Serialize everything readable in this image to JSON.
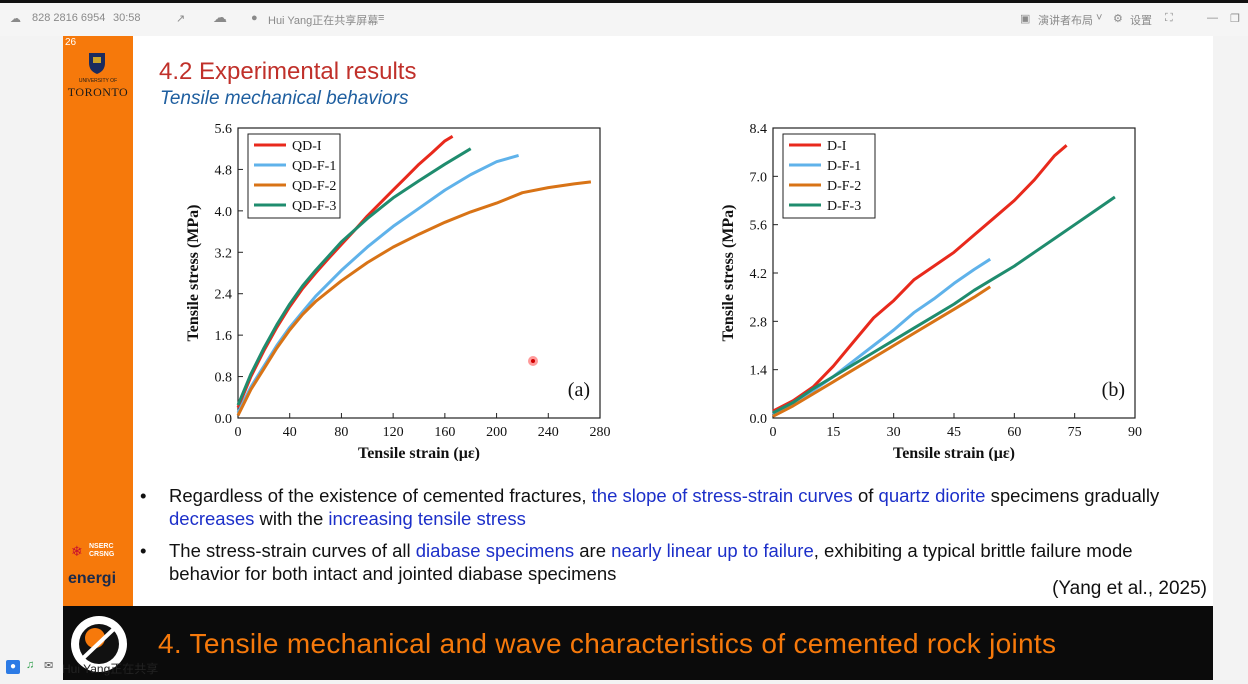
{
  "topbar": {
    "meeting_id": "828 2816 6954",
    "timer": "30:58",
    "sharing": "Hui Yang正在共享屏幕",
    "layout": "演讲者布局",
    "settings": "设置"
  },
  "slide": {
    "page_number": "26",
    "logo_university": "UNIVERSITY OF",
    "logo_toronto": "TORONTO",
    "nserc": "NSERC CRSNG",
    "energi": "energi",
    "title": "4.2 Experimental results",
    "subtitle": "Tensile mechanical behaviors",
    "bullet1": {
      "t1": "Regardless of the existence of cemented fractures, ",
      "h1": "the slope of stress-strain curves",
      "t2": " of ",
      "h2": "quartz diorite",
      "t3": " specimens gradually ",
      "h3": "decreases",
      "t4": " with the ",
      "h4": "increasing tensile stress"
    },
    "bullet2": {
      "t1": "The stress-strain curves of all ",
      "h1": "diabase specimens",
      "t2": " are ",
      "h2": "nearly linear up to failure",
      "t3": ", exhibiting a typical brittle failure mode behavior for both intact and jointed diabase specimens"
    },
    "reference": "(Yang et al., 2025)",
    "footer_title": "4. Tensile mechanical and wave characteristics of cemented rock joints"
  },
  "bottombar": {
    "sharing": "Hui Yang正在共享"
  },
  "chart_data": [
    {
      "type": "line",
      "panel_label": "(a)",
      "xlabel": "Tensile strain (με)",
      "ylabel": "Tensile stress (MPa)",
      "xlim": [
        0,
        280
      ],
      "ylim": [
        0,
        5.6
      ],
      "xticks": [
        "0",
        "40",
        "80",
        "120",
        "160",
        "200",
        "240",
        "280"
      ],
      "yticks": [
        "0.0",
        "0.8",
        "1.6",
        "2.4",
        "3.2",
        "4.0",
        "4.8",
        "5.6"
      ],
      "legend_position": "top-left",
      "series": [
        {
          "name": "QD-I",
          "color": "#e8291c",
          "points": [
            [
              0,
              0.2
            ],
            [
              10,
              0.8
            ],
            [
              20,
              1.3
            ],
            [
              30,
              1.75
            ],
            [
              40,
              2.15
            ],
            [
              50,
              2.5
            ],
            [
              60,
              2.8
            ],
            [
              70,
              3.08
            ],
            [
              80,
              3.35
            ],
            [
              90,
              3.62
            ],
            [
              100,
              3.9
            ],
            [
              110,
              4.15
            ],
            [
              120,
              4.4
            ],
            [
              130,
              4.65
            ],
            [
              140,
              4.9
            ],
            [
              150,
              5.12
            ],
            [
              160,
              5.35
            ],
            [
              166,
              5.44
            ]
          ]
        },
        {
          "name": "QD-F-1",
          "color": "#5fb2ea",
          "points": [
            [
              0,
              0.1
            ],
            [
              10,
              0.6
            ],
            [
              20,
              1.0
            ],
            [
              30,
              1.4
            ],
            [
              40,
              1.75
            ],
            [
              50,
              2.05
            ],
            [
              60,
              2.35
            ],
            [
              80,
              2.85
            ],
            [
              100,
              3.3
            ],
            [
              120,
              3.7
            ],
            [
              140,
              4.05
            ],
            [
              160,
              4.4
            ],
            [
              180,
              4.7
            ],
            [
              200,
              4.95
            ],
            [
              217,
              5.07
            ]
          ]
        },
        {
          "name": "QD-F-2",
          "color": "#d87316",
          "points": [
            [
              0,
              0.05
            ],
            [
              10,
              0.55
            ],
            [
              20,
              0.95
            ],
            [
              30,
              1.35
            ],
            [
              40,
              1.7
            ],
            [
              50,
              2.0
            ],
            [
              60,
              2.25
            ],
            [
              80,
              2.65
            ],
            [
              100,
              3.0
            ],
            [
              120,
              3.3
            ],
            [
              140,
              3.55
            ],
            [
              160,
              3.78
            ],
            [
              180,
              3.98
            ],
            [
              200,
              4.15
            ],
            [
              220,
              4.35
            ],
            [
              240,
              4.45
            ],
            [
              260,
              4.52
            ],
            [
              273,
              4.56
            ]
          ]
        },
        {
          "name": "QD-F-3",
          "color": "#1f8c6e",
          "points": [
            [
              0,
              0.25
            ],
            [
              10,
              0.85
            ],
            [
              20,
              1.35
            ],
            [
              30,
              1.8
            ],
            [
              40,
              2.2
            ],
            [
              50,
              2.55
            ],
            [
              60,
              2.85
            ],
            [
              80,
              3.4
            ],
            [
              100,
              3.85
            ],
            [
              120,
              4.25
            ],
            [
              140,
              4.58
            ],
            [
              160,
              4.9
            ],
            [
              180,
              5.2
            ]
          ]
        }
      ]
    },
    {
      "type": "line",
      "panel_label": "(b)",
      "xlabel": "Tensile strain (με)",
      "ylabel": "Tensile stress (MPa)",
      "xlim": [
        0,
        90
      ],
      "ylim": [
        0,
        8.4
      ],
      "xticks": [
        "0",
        "15",
        "30",
        "45",
        "60",
        "75",
        "90"
      ],
      "yticks": [
        "0.0",
        "1.4",
        "2.8",
        "4.2",
        "5.6",
        "7.0",
        "8.4"
      ],
      "legend_position": "top-left",
      "series": [
        {
          "name": "D-I",
          "color": "#e8291c",
          "points": [
            [
              0,
              0.2
            ],
            [
              5,
              0.5
            ],
            [
              10,
              0.9
            ],
            [
              15,
              1.5
            ],
            [
              20,
              2.2
            ],
            [
              25,
              2.9
            ],
            [
              30,
              3.4
            ],
            [
              35,
              4.0
            ],
            [
              40,
              4.4
            ],
            [
              45,
              4.8
            ],
            [
              50,
              5.3
            ],
            [
              55,
              5.8
            ],
            [
              60,
              6.3
            ],
            [
              65,
              6.9
            ],
            [
              70,
              7.6
            ],
            [
              73,
              7.9
            ]
          ]
        },
        {
          "name": "D-F-1",
          "color": "#5fb2ea",
          "points": [
            [
              0,
              0.1
            ],
            [
              5,
              0.45
            ],
            [
              10,
              0.8
            ],
            [
              15,
              1.2
            ],
            [
              20,
              1.65
            ],
            [
              25,
              2.1
            ],
            [
              30,
              2.55
            ],
            [
              35,
              3.05
            ],
            [
              40,
              3.45
            ],
            [
              45,
              3.9
            ],
            [
              50,
              4.3
            ],
            [
              54,
              4.6
            ]
          ]
        },
        {
          "name": "D-F-2",
          "color": "#d87316",
          "points": [
            [
              0,
              0.05
            ],
            [
              5,
              0.35
            ],
            [
              10,
              0.7
            ],
            [
              15,
              1.05
            ],
            [
              20,
              1.4
            ],
            [
              25,
              1.75
            ],
            [
              30,
              2.1
            ],
            [
              35,
              2.45
            ],
            [
              40,
              2.8
            ],
            [
              45,
              3.15
            ],
            [
              50,
              3.5
            ],
            [
              54,
              3.8
            ]
          ]
        },
        {
          "name": "D-F-3",
          "color": "#1f8c6e",
          "points": [
            [
              0,
              0.15
            ],
            [
              5,
              0.45
            ],
            [
              10,
              0.85
            ],
            [
              15,
              1.2
            ],
            [
              20,
              1.55
            ],
            [
              25,
              1.9
            ],
            [
              30,
              2.25
            ],
            [
              35,
              2.6
            ],
            [
              40,
              2.95
            ],
            [
              45,
              3.3
            ],
            [
              50,
              3.7
            ],
            [
              55,
              4.05
            ],
            [
              60,
              4.4
            ],
            [
              65,
              4.8
            ],
            [
              70,
              5.2
            ],
            [
              75,
              5.6
            ],
            [
              80,
              6.0
            ],
            [
              85,
              6.4
            ]
          ]
        }
      ]
    }
  ]
}
